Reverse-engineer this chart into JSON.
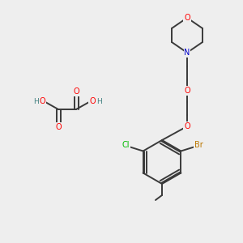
{
  "background_color": "#eeeeee",
  "bond_color": "#3a3a3a",
  "atom_colors": {
    "O": "#ff0000",
    "N": "#0000cc",
    "Cl": "#00bb00",
    "Br": "#bb7700",
    "C": "#3a3a3a",
    "H": "#408080"
  },
  "figsize": [
    3.0,
    3.0
  ],
  "dpi": 100
}
